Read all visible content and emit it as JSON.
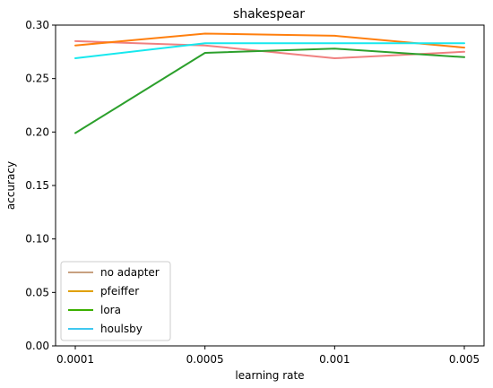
{
  "chart_data": {
    "type": "line",
    "title": "shakespear",
    "xlabel": "learning rate",
    "ylabel": "accuracy",
    "categories": [
      "0.0001",
      "0.0005",
      "0.001",
      "0.005"
    ],
    "ylim": [
      0.0,
      0.3
    ],
    "yticks": [
      "0.00",
      "0.05",
      "0.10",
      "0.15",
      "0.20",
      "0.25",
      "0.30"
    ],
    "grid": false,
    "legend_position": "lower-left",
    "series": [
      {
        "name": "no adapter",
        "color": "#f08080",
        "legend_color": "#c8a080",
        "values": [
          0.285,
          0.281,
          0.269,
          0.275
        ]
      },
      {
        "name": "pfeiffer",
        "color": "#ff7f0e",
        "legend_color": "#e0a000",
        "values": [
          0.281,
          0.292,
          0.29,
          0.279
        ]
      },
      {
        "name": "lora",
        "color": "#2ca02c",
        "legend_color": "#3cb000",
        "values": [
          0.199,
          0.274,
          0.278,
          0.27
        ]
      },
      {
        "name": "houlsby",
        "color": "#17e8ee",
        "legend_color": "#40c8f0",
        "values": [
          0.269,
          0.283,
          0.283,
          0.283
        ]
      }
    ]
  }
}
